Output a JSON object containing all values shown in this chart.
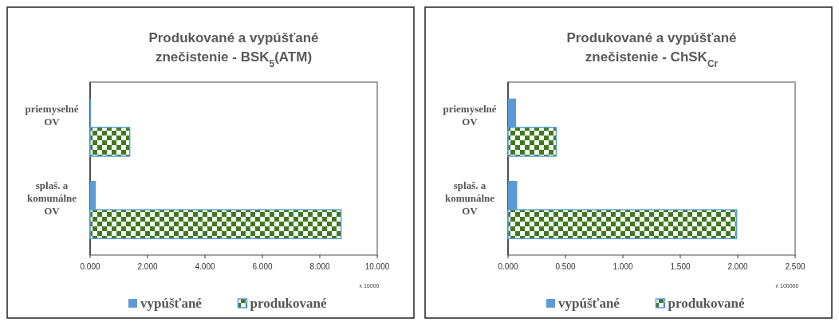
{
  "chart_data": [
    {
      "type": "bar",
      "orientation": "horizontal",
      "title": "Produkované  a vypúšťané znečistenie - BSK$_{5}$(ATM)",
      "categories": [
        "priemyselné OV",
        "splaš. a komunálne OV"
      ],
      "series": [
        {
          "name": "vypúšťané",
          "color": "#5b9bd5",
          "values": [
            0.03,
            0.2
          ]
        },
        {
          "name": "produkované",
          "color": "#3d7a1e",
          "values": [
            1.38,
            8.74
          ]
        }
      ],
      "xlim": [
        0,
        10
      ],
      "xticks": [
        {
          "value": 0,
          "label": "0.000"
        },
        {
          "value": 2,
          "label": "2.000"
        },
        {
          "value": 4,
          "label": "4.000"
        },
        {
          "value": 6,
          "label": "6.000"
        },
        {
          "value": 8,
          "label": "8.000"
        },
        {
          "value": 10,
          "label": "10.000"
        }
      ],
      "annotations": [
        "x 10000"
      ],
      "legend": "bottom",
      "grid": false
    },
    {
      "type": "bar",
      "orientation": "horizontal",
      "title": "Produkované  a vypúšťané znečistenie - ChSK$_{Cr}$",
      "categories": [
        "priemyselné OV",
        "splaš. a komunálne OV"
      ],
      "series": [
        {
          "name": "vypúšťané",
          "color": "#5b9bd5",
          "values": [
            0.07,
            0.08
          ]
        },
        {
          "name": "produkované",
          "color": "#3d7a1e",
          "values": [
            0.42,
            1.99
          ]
        }
      ],
      "xlim": [
        0,
        2.5
      ],
      "xticks": [
        {
          "value": 0,
          "label": "0.000"
        },
        {
          "value": 0.5,
          "label": "0.500"
        },
        {
          "value": 1,
          "label": "1.000"
        },
        {
          "value": 1.5,
          "label": "1.500"
        },
        {
          "value": 2,
          "label": "2.000"
        },
        {
          "value": 2.5,
          "label": "2.500"
        }
      ],
      "annotations": [
        "x 100000"
      ],
      "legend": "bottom",
      "grid": false
    }
  ]
}
